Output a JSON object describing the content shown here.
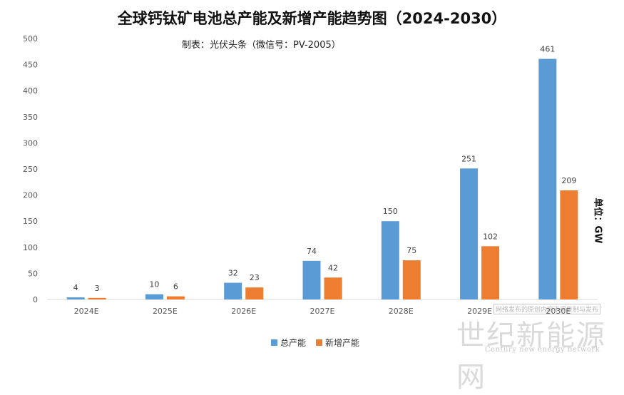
{
  "chart_data": {
    "type": "bar",
    "title": "全球钙钛矿电池总产能及新增产能趋势图（2024-2030）",
    "subtitle": "制表：光伏头条（微信号：PV-2005）",
    "unit": "单位：GW",
    "categories": [
      "2024E",
      "2025E",
      "2026E",
      "2027E",
      "2028E",
      "2029E",
      "2030E"
    ],
    "series": [
      {
        "name": "总产能",
        "color": "#5B9BD5",
        "values": [
          4,
          10,
          32,
          74,
          150,
          251,
          461
        ]
      },
      {
        "name": "新增产能",
        "color": "#ED7D31",
        "values": [
          3,
          6,
          23,
          42,
          75,
          102,
          209
        ]
      }
    ],
    "ylim": [
      0,
      500
    ],
    "yticks": [
      0,
      50,
      100,
      150,
      200,
      250,
      300,
      350,
      400,
      450,
      500
    ],
    "grid": false,
    "legend_position": "bottom"
  },
  "watermark": {
    "main": "世纪新能源网",
    "english": "Century new energy network",
    "box_text": "网络发布的原创内容不得复制与发布"
  }
}
